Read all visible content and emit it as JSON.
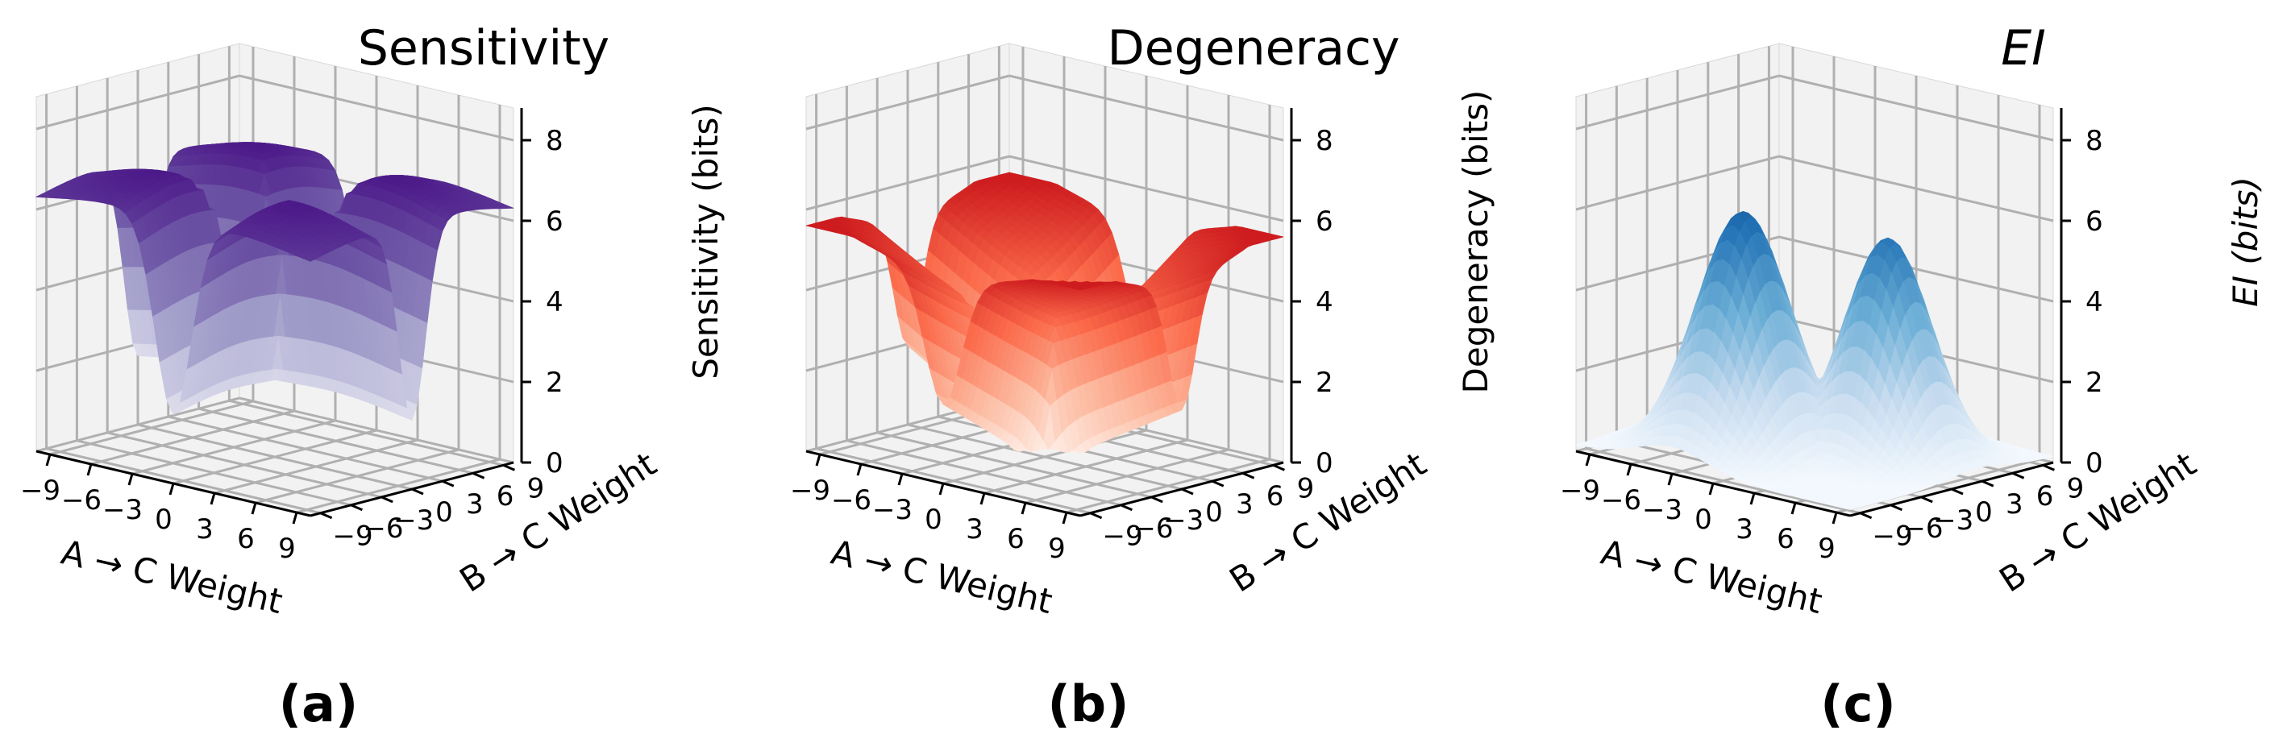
{
  "figure": {
    "panels": [
      {
        "title": "Sensitivity",
        "title_italic": false,
        "panel_label": "(a)",
        "colormap_name": "Purples",
        "colormap": [
          "#fcfbfd",
          "#dadaeb",
          "#9e9ac8",
          "#6a51a3",
          "#3f007d"
        ],
        "surface_shape": "four-peaked plateau, high everywhere except a narrow cross-shaped trough along both zero-weight axes",
        "zlabel": "Sensitivity (bits)"
      },
      {
        "title": "Degeneracy",
        "title_italic": false,
        "panel_label": "(b)",
        "colormap_name": "Reds",
        "colormap": [
          "#fff5f0",
          "#fcbba1",
          "#fb6a4a",
          "#cb181d",
          "#67000d"
        ],
        "surface_shape": "saddle: high ridges at large weights, deep cross-shaped valley along both zero-weight axes",
        "zlabel": "Degeneracy (bits)"
      },
      {
        "title": "EI",
        "title_italic": true,
        "panel_label": "(c)",
        "colormap_name": "Blues",
        "colormap": [
          "#f7fbff",
          "#c6dbef",
          "#6baed6",
          "#2171b5",
          "#08306b"
        ],
        "surface_shape": "two broad hills at mid-range weights, low near the edges",
        "zlabel": "EI (bits)"
      }
    ],
    "axes": {
      "xlabel": "A → C Weight",
      "ylabel": "B → C Weight",
      "x_ticks": [
        "−9",
        "−6",
        "−3",
        "0",
        "3",
        "6",
        "9"
      ],
      "y_ticks": [
        "−9",
        "−6",
        "−3",
        "0",
        "3",
        "6",
        "9"
      ],
      "z_ticks": [
        "0",
        "2",
        "4",
        "6",
        "8"
      ]
    }
  },
  "chart_data": [
    {
      "type": "surface3d",
      "title": "Sensitivity",
      "xlabel": "A → C Weight",
      "ylabel": "B → C Weight",
      "zlabel": "Sensitivity (bits)",
      "xlim": [
        -10,
        10
      ],
      "ylim": [
        -10,
        10
      ],
      "zlim": [
        0,
        8
      ],
      "x_ticks": [
        -9,
        -6,
        -3,
        0,
        3,
        6,
        9
      ],
      "y_ticks": [
        -9,
        -6,
        -3,
        0,
        3,
        6,
        9
      ],
      "z_ticks": [
        0,
        2,
        4,
        6,
        8
      ],
      "approx_peak_z": 7.2,
      "approx_min_z": 0.2
    },
    {
      "type": "surface3d",
      "title": "Degeneracy",
      "xlabel": "A → C Weight",
      "ylabel": "B → C Weight",
      "zlabel": "Degeneracy (bits)",
      "xlim": [
        -10,
        10
      ],
      "ylim": [
        -10,
        10
      ],
      "zlim": [
        0,
        8
      ],
      "x_ticks": [
        -9,
        -6,
        -3,
        0,
        3,
        6,
        9
      ],
      "y_ticks": [
        -9,
        -6,
        -3,
        0,
        3,
        6,
        9
      ],
      "z_ticks": [
        0,
        2,
        4,
        6,
        8
      ],
      "approx_peak_z": 5.6,
      "approx_min_z": 0.3
    },
    {
      "type": "surface3d",
      "title": "EI",
      "xlabel": "A → C Weight",
      "ylabel": "B → C Weight",
      "zlabel": "EI (bits)",
      "xlim": [
        -10,
        10
      ],
      "ylim": [
        -10,
        10
      ],
      "zlim": [
        0,
        8
      ],
      "x_ticks": [
        -9,
        -6,
        -3,
        0,
        3,
        6,
        9
      ],
      "y_ticks": [
        -9,
        -6,
        -3,
        0,
        3,
        6,
        9
      ],
      "z_ticks": [
        0,
        2,
        4,
        6,
        8
      ],
      "approx_peak_z": 6.0,
      "approx_min_z": 0.0
    }
  ]
}
